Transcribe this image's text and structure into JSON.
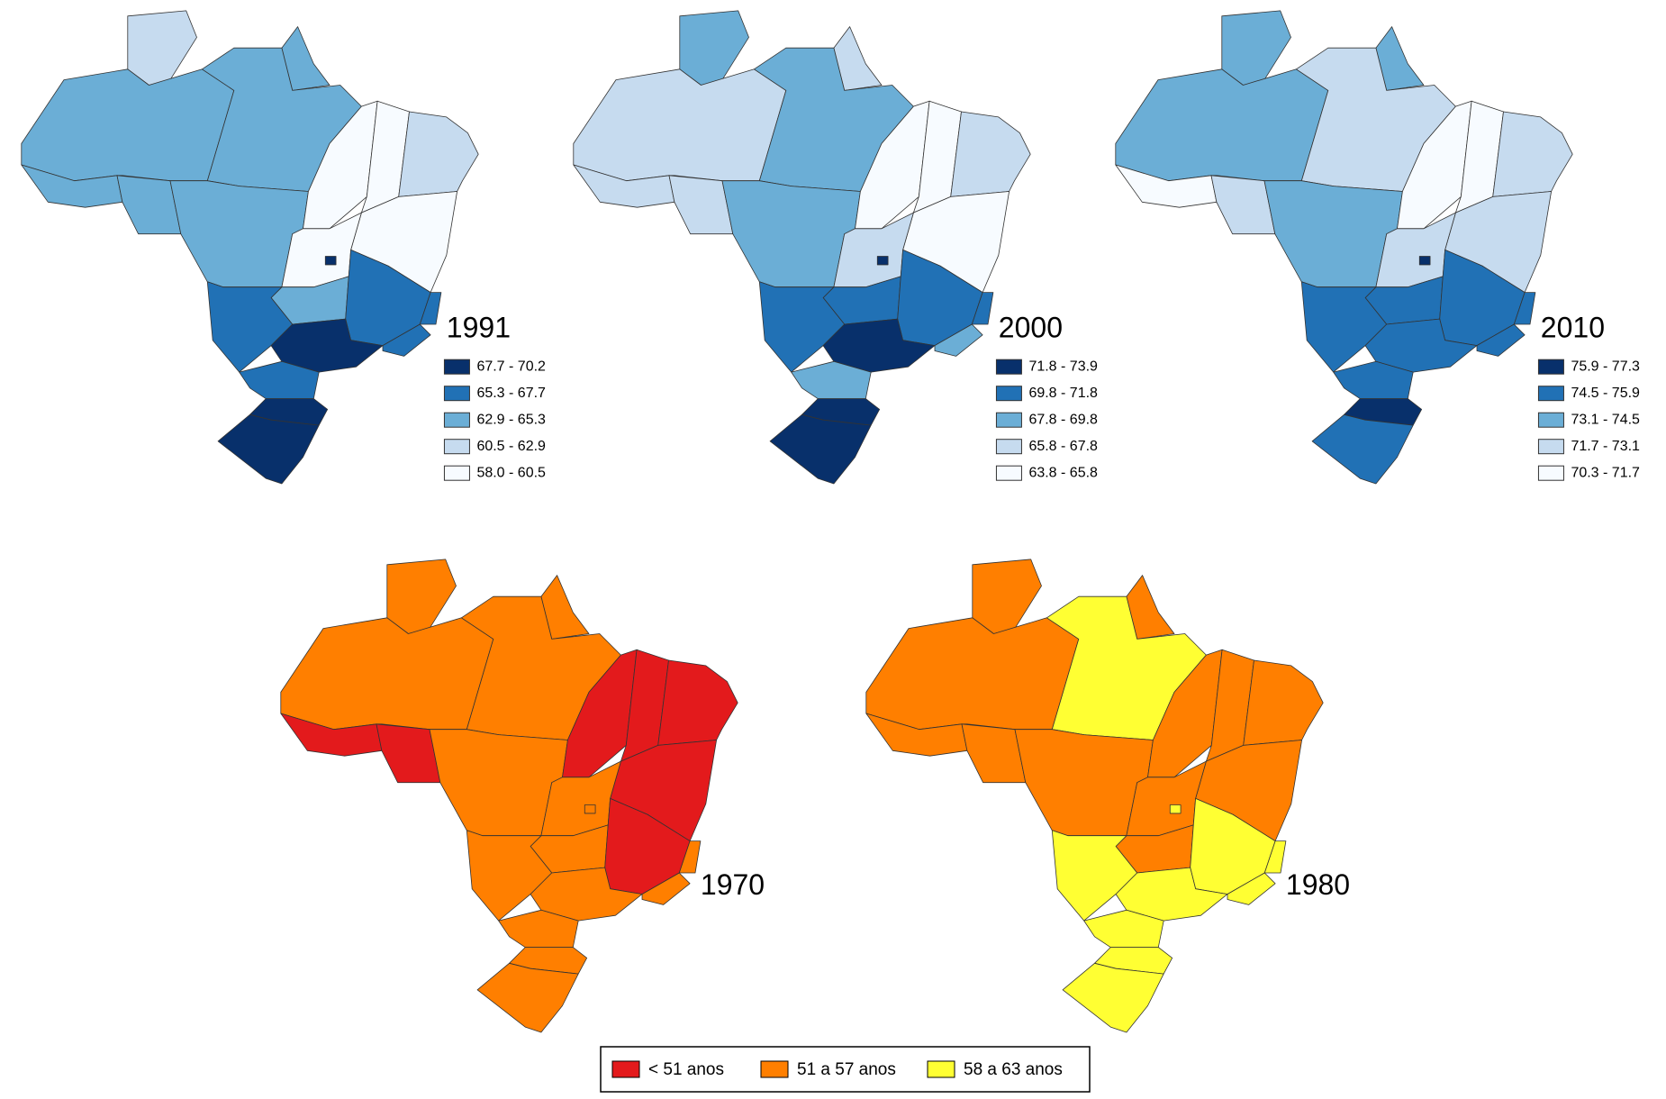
{
  "maps": [
    {
      "year": "1991",
      "legend": [
        {
          "label": "67.7 - 70.2",
          "color": "#08306b"
        },
        {
          "label": "65.3 - 67.7",
          "color": "#2171b5"
        },
        {
          "label": "62.9 - 65.3",
          "color": "#6baed6"
        },
        {
          "label": "60.5 - 62.9",
          "color": "#c6dbef"
        },
        {
          "label": "58.0 - 60.5",
          "color": "#f7fbff"
        }
      ]
    },
    {
      "year": "2000",
      "legend": [
        {
          "label": "71.8 - 73.9",
          "color": "#08306b"
        },
        {
          "label": "69.8 - 71.8",
          "color": "#2171b5"
        },
        {
          "label": "67.8 - 69.8",
          "color": "#6baed6"
        },
        {
          "label": "65.8 - 67.8",
          "color": "#c6dbef"
        },
        {
          "label": "63.8 - 65.8",
          "color": "#f7fbff"
        }
      ]
    },
    {
      "year": "2010",
      "legend": [
        {
          "label": "75.9 - 77.3",
          "color": "#08306b"
        },
        {
          "label": "74.5 - 75.9",
          "color": "#2171b5"
        },
        {
          "label": "73.1 - 74.5",
          "color": "#6baed6"
        },
        {
          "label": "71.7 - 73.1",
          "color": "#c6dbef"
        },
        {
          "label": "70.3 - 71.7",
          "color": "#f7fbff"
        }
      ]
    },
    {
      "year": "1970"
    },
    {
      "year": "1980"
    }
  ],
  "shared_legend": [
    {
      "label": "< 51 anos",
      "color": "#e31a1c"
    },
    {
      "label": "51 a 57 anos",
      "color": "#ff7f00"
    },
    {
      "label": "58 a 63 anos",
      "color": "#ffff33"
    }
  ]
}
